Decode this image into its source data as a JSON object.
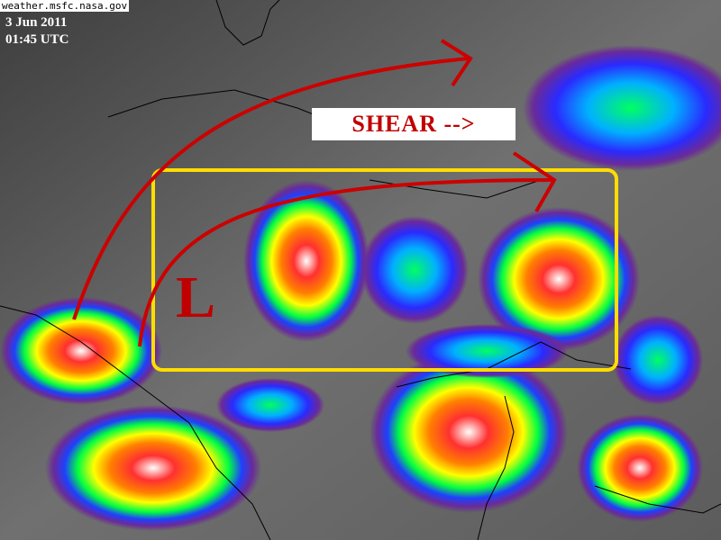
{
  "image": {
    "source_credit": "weather.msfc.nasa.gov",
    "date": "3 Jun 2011",
    "time": "01:45 UTC"
  },
  "annotations": {
    "shear_label": "SHEAR -->",
    "low_label": "L",
    "box_color": "#ffdd00",
    "arrow_color": "#cc0000"
  },
  "colors": {
    "background_gray": "#585858",
    "cloud_scale": [
      "#5a2a8a",
      "#2a2aff",
      "#00c0ff",
      "#00ff40",
      "#ffff00",
      "#ff6000",
      "#e00000",
      "#ffffff"
    ]
  }
}
